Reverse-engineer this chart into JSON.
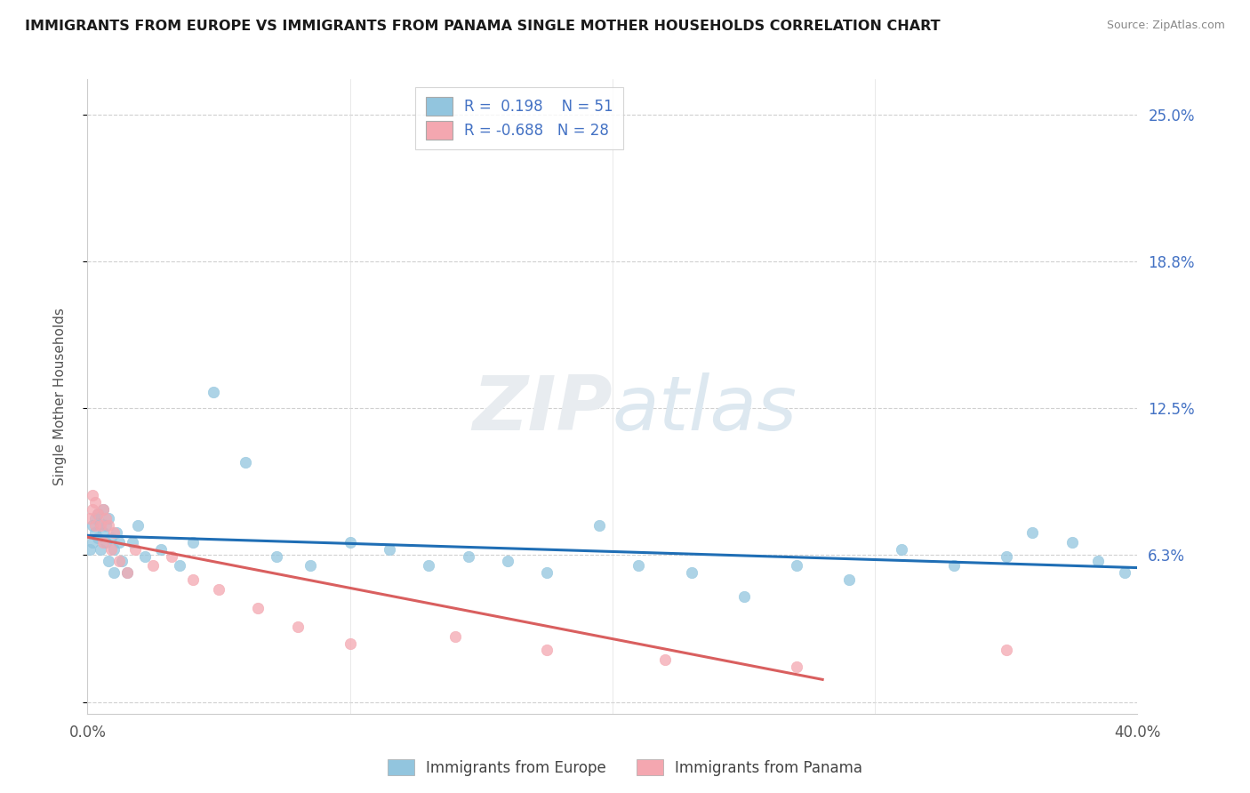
{
  "title": "IMMIGRANTS FROM EUROPE VS IMMIGRANTS FROM PANAMA SINGLE MOTHER HOUSEHOLDS CORRELATION CHART",
  "source": "Source: ZipAtlas.com",
  "ylabel": "Single Mother Households",
  "legend_labels": [
    "Immigrants from Europe",
    "Immigrants from Panama"
  ],
  "r_europe": 0.198,
  "n_europe": 51,
  "r_panama": -0.688,
  "n_panama": 28,
  "yticks": [
    0.0,
    0.0625,
    0.125,
    0.1875,
    0.25
  ],
  "ytick_labels": [
    "",
    "6.3%",
    "12.5%",
    "18.8%",
    "25.0%"
  ],
  "xticks": [
    0.0,
    0.1,
    0.2,
    0.3,
    0.4
  ],
  "xtick_labels": [
    "0.0%",
    "",
    "",
    "",
    "40.0%"
  ],
  "color_europe": "#92c5de",
  "color_panama": "#f4a7b0",
  "line_color_europe": "#1f6eb5",
  "line_color_panama": "#d95f5f",
  "europe_x": [
    0.001,
    0.002,
    0.002,
    0.003,
    0.003,
    0.004,
    0.004,
    0.005,
    0.005,
    0.006,
    0.006,
    0.007,
    0.007,
    0.008,
    0.008,
    0.009,
    0.01,
    0.01,
    0.011,
    0.012,
    0.013,
    0.015,
    0.017,
    0.019,
    0.022,
    0.028,
    0.035,
    0.04,
    0.048,
    0.06,
    0.072,
    0.085,
    0.1,
    0.115,
    0.13,
    0.145,
    0.16,
    0.175,
    0.195,
    0.21,
    0.23,
    0.25,
    0.27,
    0.29,
    0.31,
    0.33,
    0.35,
    0.36,
    0.375,
    0.385,
    0.395
  ],
  "europe_y": [
    0.065,
    0.075,
    0.068,
    0.078,
    0.072,
    0.08,
    0.07,
    0.076,
    0.065,
    0.082,
    0.072,
    0.068,
    0.075,
    0.06,
    0.078,
    0.07,
    0.065,
    0.055,
    0.072,
    0.068,
    0.06,
    0.055,
    0.068,
    0.075,
    0.062,
    0.065,
    0.058,
    0.068,
    0.132,
    0.102,
    0.062,
    0.058,
    0.068,
    0.065,
    0.058,
    0.062,
    0.06,
    0.055,
    0.075,
    0.058,
    0.055,
    0.045,
    0.058,
    0.052,
    0.065,
    0.058,
    0.062,
    0.072,
    0.068,
    0.06,
    0.055
  ],
  "panama_x": [
    0.001,
    0.002,
    0.002,
    0.003,
    0.003,
    0.004,
    0.005,
    0.006,
    0.006,
    0.007,
    0.008,
    0.009,
    0.01,
    0.012,
    0.015,
    0.018,
    0.025,
    0.032,
    0.04,
    0.05,
    0.065,
    0.08,
    0.1,
    0.14,
    0.175,
    0.22,
    0.27,
    0.35
  ],
  "panama_y": [
    0.078,
    0.082,
    0.088,
    0.075,
    0.085,
    0.08,
    0.075,
    0.082,
    0.068,
    0.078,
    0.075,
    0.065,
    0.072,
    0.06,
    0.055,
    0.065,
    0.058,
    0.062,
    0.052,
    0.048,
    0.04,
    0.032,
    0.025,
    0.028,
    0.022,
    0.018,
    0.015,
    0.022
  ],
  "xlim": [
    0.0,
    0.4
  ],
  "ylim": [
    -0.005,
    0.265
  ]
}
